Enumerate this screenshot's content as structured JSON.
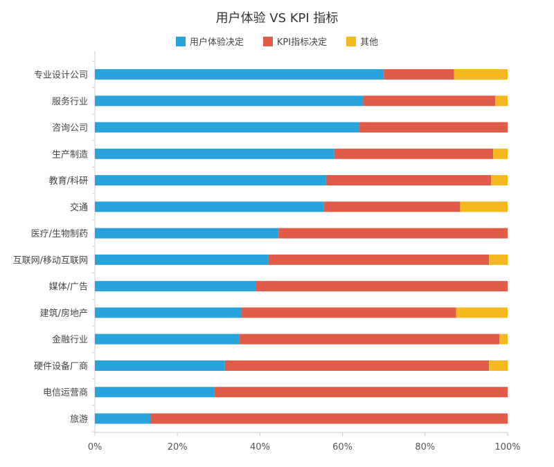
{
  "chart_data": {
    "type": "bar",
    "orientation": "horizontal",
    "stacked": "percent",
    "title": "用户体验 VS KPI 指标",
    "legend_position": "top",
    "categories": [
      "专业设计公司",
      "服务行业",
      "咨询公司",
      "生产制造",
      "教育/科研",
      "交通",
      "医疗/生物制药",
      "互联网/移动互联网",
      "媒体/广告",
      "建筑/房地产",
      "金融行业",
      "硬件设备厂商",
      "电信运营商",
      "旅游"
    ],
    "series": [
      {
        "name": "用户体验决定",
        "color": "#29a3dc",
        "values": [
          70,
          65,
          64,
          58,
          56,
          55.5,
          44.5,
          42,
          39,
          35.5,
          35,
          31.5,
          29,
          13.5
        ]
      },
      {
        "name": "KPI指标决定",
        "color": "#e05c49",
        "values": [
          17,
          32,
          36,
          38.5,
          40,
          33,
          55.5,
          53.5,
          61,
          52,
          63,
          64,
          71,
          86.5
        ]
      },
      {
        "name": "其他",
        "color": "#f4b920",
        "values": [
          13,
          3,
          0,
          3.5,
          4,
          11.5,
          0,
          4.5,
          0,
          12.5,
          2,
          4.5,
          0,
          0
        ]
      }
    ],
    "xlim": [
      0,
      100
    ],
    "x_ticks": [
      "0%",
      "20%",
      "40%",
      "60%",
      "80%",
      "100%"
    ],
    "grid": false
  }
}
